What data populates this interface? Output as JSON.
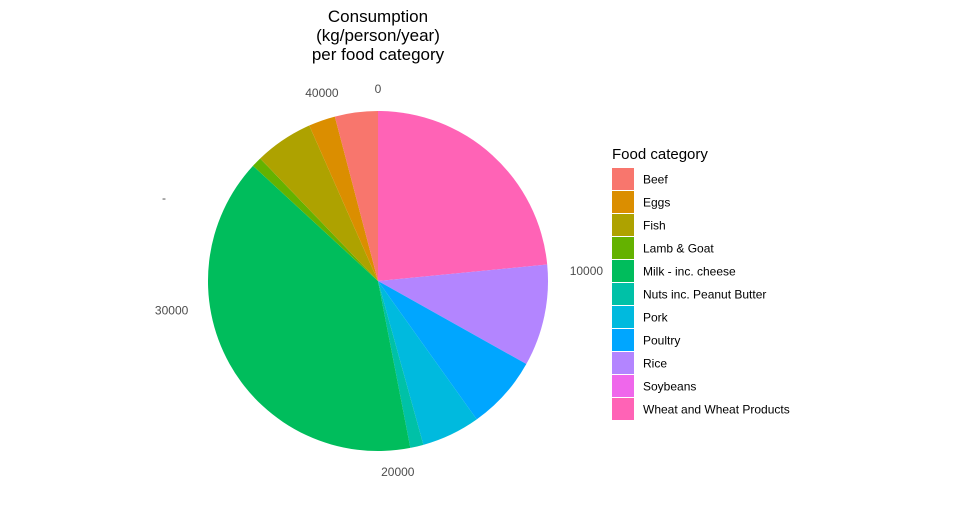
{
  "chart_data": {
    "type": "pie",
    "title": [
      "Consumption",
      "(kg/person/year)",
      "per food category"
    ],
    "legend_title": "Food category",
    "legend_position": "right",
    "categories": [
      "Beef",
      "Eggs",
      "Fish",
      "Lamb & Goat",
      "Milk - inc. cheese",
      "Nuts inc. Peanut Butter",
      "Pork",
      "Poultry",
      "Rice",
      "Soybeans",
      "Wheat and Wheat Products"
    ],
    "values": [
      1690,
      1050,
      2300,
      400,
      16500,
      520,
      2300,
      2900,
      4000,
      0,
      9700
    ],
    "colors": [
      "#F8766D",
      "#DB8E00",
      "#AEA200",
      "#64B200",
      "#00BD5C",
      "#00C1A7",
      "#00BADE",
      "#00A6FF",
      "#B385FF",
      "#EF67EB",
      "#FF63B6"
    ],
    "angular_axis": {
      "tick_labels": [
        "0",
        "10000",
        "20000",
        "30000",
        "40000"
      ],
      "tick_values": [
        0,
        10000,
        20000,
        30000,
        40000
      ]
    },
    "radial_axis_label": "-",
    "grid": false
  }
}
